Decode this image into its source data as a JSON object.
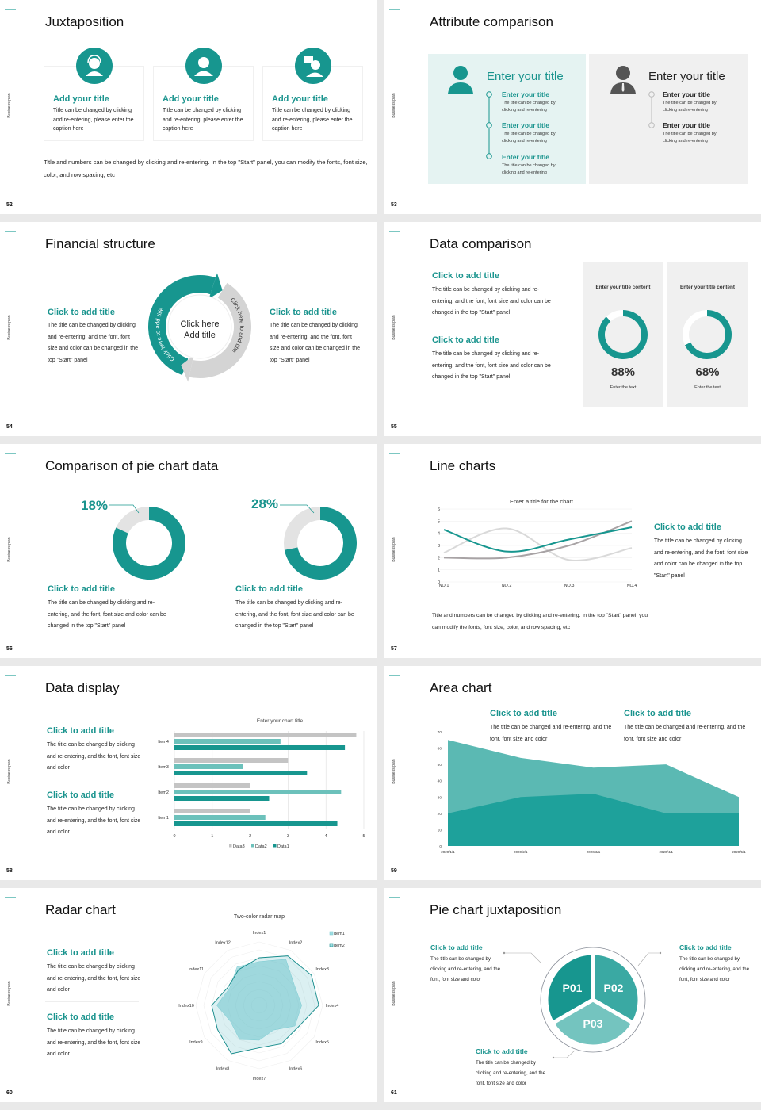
{
  "common": {
    "side_label": "Business plan"
  },
  "colors": {
    "teal": "#17968f",
    "teal_light": "#5db8b2",
    "teal_mid": "#3aa9a3",
    "gray": "#c9c9c9",
    "panel_teal": "#e5f3f2",
    "panel_gray": "#f0f0f0"
  },
  "s52": {
    "number": "52",
    "title": "Juxtaposition",
    "cards": [
      {
        "icon": "headset-agent-icon",
        "title": "Add your title",
        "body": "Title can be changed by clicking and re-entering, please enter the caption here"
      },
      {
        "icon": "user-icon",
        "title": "Add your title",
        "body": "Title can be changed by clicking and re-entering, please enter the caption here"
      },
      {
        "icon": "user-chat-icon",
        "title": "Add your title",
        "body": "Title can be changed by clicking and re-entering, please enter the caption here"
      }
    ],
    "footer": "Title and numbers can be changed by clicking and re-entering. In the top \"Start\" panel, you can modify the fonts, font size, color, and row spacing, etc"
  },
  "s53": {
    "number": "53",
    "title": "Attribute comparison",
    "left": {
      "title": "Enter your title",
      "items": [
        {
          "title": "Enter your title",
          "body": "The title can be changed by clicking and re-entering"
        },
        {
          "title": "Enter your title",
          "body": "The title can be changed by clicking and re-entering"
        },
        {
          "title": "Enter your title",
          "body": "The title can be changed by clicking and re-entering"
        }
      ]
    },
    "right": {
      "title": "Enter your title",
      "items": [
        {
          "title": "Enter your title",
          "body": "The title can be changed by clicking and re-entering"
        },
        {
          "title": "Enter your title",
          "body": "The title can be changed by clicking and re-entering"
        }
      ]
    }
  },
  "s54": {
    "number": "54",
    "title": "Financial structure",
    "left": {
      "title": "Click to add title",
      "body": "The title can be changed by clicking and re-entering, and the font, font size and color can be changed in the top \"Start\" panel"
    },
    "right": {
      "title": "Click to add title",
      "body": "The title can be changed by clicking and re-entering, and the font, font size and color can be changed in the top \"Start\" panel"
    },
    "center": "Click here Add title",
    "arc_left": "Click here to add title",
    "arc_right": "Click here to add title"
  },
  "s55": {
    "number": "55",
    "title": "Data comparison",
    "blocks": [
      {
        "title": "Click to add title",
        "body": "The title can be changed by clicking and re-entering, and the font, font size and color can be changed in the top \"Start\" panel"
      },
      {
        "title": "Click to add title",
        "body": "The title can be changed by clicking and re-entering, and the font, font size and color can be changed in the top \"Start\" panel"
      }
    ],
    "panels": [
      {
        "title": "Enter your title content",
        "percent": "88%",
        "caption": "Enter the text"
      },
      {
        "title": "Enter your title content",
        "percent": "68%",
        "caption": "Enter the text"
      }
    ]
  },
  "s56": {
    "number": "56",
    "title": "Comparison of pie chart data",
    "items": [
      {
        "percent": "18%",
        "title": "Click to add title",
        "body": "The title can be changed by clicking and re-entering, and the font, font size and color can be changed in the top \"Start\" panel"
      },
      {
        "percent": "28%",
        "title": "Click to add title",
        "body": "The title can be changed by clicking and re-entering, and the font, font size and color can be changed in the top \"Start\" panel"
      }
    ]
  },
  "s57": {
    "number": "57",
    "title": "Line charts",
    "side": {
      "title": "Click to add title",
      "body": "The title can be changed by clicking and re-entering, and the font, font size and color can be changed in the top \"Start\" panel"
    },
    "footer": "Title and numbers can be changed by clicking and re-entering. In the top \"Start\" panel, you can modify the fonts, font size, color, and row spacing, etc"
  },
  "s58": {
    "number": "58",
    "title": "Data display",
    "blocks": [
      {
        "title": "Click to add title",
        "body": "The title can be changed by clicking and re-entering, and the font, font size and color"
      },
      {
        "title": "Click to add title",
        "body": "The title can be changed by clicking and re-entering, and the font, font size and color"
      }
    ]
  },
  "s59": {
    "number": "59",
    "title": "Area chart",
    "blocks": [
      {
        "title": "Click to add title",
        "body": "The title can be changed and re-entering, and the font, font size and color"
      },
      {
        "title": "Click to add title",
        "body": "The title can be changed and re-entering, and the font, font size and color"
      }
    ]
  },
  "s60": {
    "number": "60",
    "title": "Radar chart",
    "blocks": [
      {
        "title": "Click to add title",
        "body": "The title can be changed by clicking and re-entering, and the font, font size and color"
      },
      {
        "title": "Click to add title",
        "body": "The title can be changed by clicking and re-entering, and the font, font size and color"
      }
    ]
  },
  "s61": {
    "number": "61",
    "title": "Pie chart juxtaposition",
    "blocks": [
      {
        "title": "Click to add title",
        "body": "The title can be changed by clicking and re-entering, and the font, font size and color"
      },
      {
        "title": "Click to add title",
        "body": "The title can be changed by clicking and re-entering, and the font, font size and color"
      },
      {
        "title": "Click to add title",
        "body": "The title can be changed by clicking and re-entering, and the font, font size and color"
      }
    ]
  },
  "chart_data": [
    {
      "type": "line",
      "title": "Enter a title for the chart",
      "categories": [
        "NO.1",
        "NO.2",
        "NO.3",
        "NO.4"
      ],
      "ylim": [
        0,
        6
      ],
      "yticks": [
        "0",
        "1",
        "2",
        "3",
        "4",
        "5",
        "6"
      ],
      "grid": true,
      "series": [
        {
          "values": [
            4.3,
            2.5,
            3.5,
            4.5
          ],
          "color": "#17968f"
        },
        {
          "values": [
            2.4,
            4.4,
            1.8,
            2.8
          ],
          "color": "#d9d9d9"
        },
        {
          "values": [
            2.0,
            2.0,
            3.0,
            5.0
          ],
          "color": "#a8a3a5"
        }
      ]
    },
    {
      "type": "bar",
      "orientation": "horizontal",
      "title": "Enter your chart title",
      "categories": [
        "Item1",
        "Item2",
        "Item3",
        "Item4"
      ],
      "xlim": [
        0,
        5
      ],
      "xticks": [
        "0",
        "1",
        "2",
        "3",
        "4",
        "5"
      ],
      "grid": true,
      "legend": "bottom",
      "series": [
        {
          "name": "Data1",
          "values": [
            4.3,
            2.5,
            3.5,
            4.5
          ],
          "color": "#17968f"
        },
        {
          "name": "Data2",
          "values": [
            2.4,
            4.4,
            1.8,
            2.8
          ],
          "color": "#6cc1bb"
        },
        {
          "name": "Data3",
          "values": [
            2,
            2,
            3,
            4.8
          ],
          "color": "#c4c4c4"
        }
      ],
      "legend_order": [
        "Data3",
        "Data2",
        "Data1"
      ]
    },
    {
      "type": "area",
      "categories": [
        "2020/1/1",
        "2020/2/1",
        "2020/3/1",
        "2020/4/1",
        "2020/5/1"
      ],
      "ylim": [
        0,
        70
      ],
      "yticks": [
        "0",
        "10",
        "20",
        "30",
        "40",
        "50",
        "60",
        "70"
      ],
      "series": [
        {
          "values": [
            65,
            54,
            48,
            50,
            30
          ],
          "color": "#5bb9b3"
        },
        {
          "values": [
            20,
            30,
            32,
            20,
            20
          ],
          "color": "#1ea19b"
        }
      ]
    },
    {
      "type": "radar",
      "title": "Two-color radar map",
      "legend": "top-right",
      "categories": [
        "Index1",
        "Index2",
        "Index3",
        "Index4",
        "Index5",
        "Index6",
        "Index7",
        "Index8",
        "Index9",
        "Index10",
        "Index11",
        "Index12"
      ],
      "rmax": 10,
      "series": [
        {
          "name": "Item1",
          "values": [
            6.9,
            8.4,
            6.4,
            6.7,
            6.5,
            4.5,
            5.5,
            6.2,
            5.2,
            6.7,
            5.4,
            7.0
          ],
          "color": "#7fcfd6"
        },
        {
          "name": "Item2",
          "values": [
            7.5,
            9.0,
            9.5,
            9.4,
            7.0,
            7.0,
            6.7,
            8.8,
            7.6,
            7.5,
            5.7,
            6.5
          ],
          "color": "#138a8a"
        }
      ]
    },
    {
      "type": "pie",
      "variant": "donut",
      "values": [
        88,
        68
      ],
      "labels": [
        "88%",
        "68%"
      ]
    },
    {
      "type": "pie",
      "variant": "donut",
      "values": [
        18,
        28
      ],
      "labels": [
        "18%",
        "28%"
      ]
    },
    {
      "type": "pie",
      "labels": [
        "P01",
        "P02",
        "P03"
      ],
      "values": [
        33.3,
        33.3,
        33.3
      ],
      "colors": [
        "#17968f",
        "#3aa9a3",
        "#74c4bf"
      ]
    }
  ]
}
